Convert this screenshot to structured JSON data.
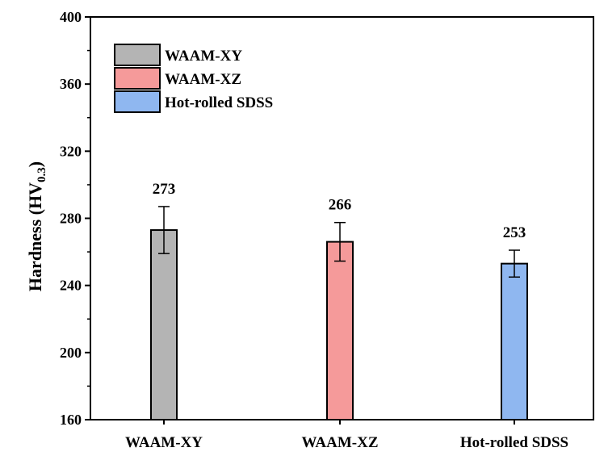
{
  "chart_data": {
    "type": "bar",
    "title": "",
    "xlabel": "",
    "ylabel": {
      "main": "Hardness (HV",
      "subscript": "0.3",
      "close": ")"
    },
    "ylim": [
      160,
      400
    ],
    "yticks": [
      160,
      200,
      240,
      280,
      320,
      360,
      400
    ],
    "categories": [
      "WAAM-XY",
      "WAAM-XZ",
      "Hot-rolled SDSS"
    ],
    "values": [
      273,
      266,
      253
    ],
    "errors": [
      14,
      11.5,
      8
    ],
    "data_labels": [
      "273",
      "266",
      "253"
    ],
    "colors": [
      "#b4b4b4",
      "#f59a9a",
      "#8fb7f0"
    ],
    "legend": {
      "position": "top-left",
      "entries": [
        "WAAM-XY",
        "WAAM-XZ",
        "Hot-rolled SDSS"
      ]
    },
    "grid": false
  }
}
